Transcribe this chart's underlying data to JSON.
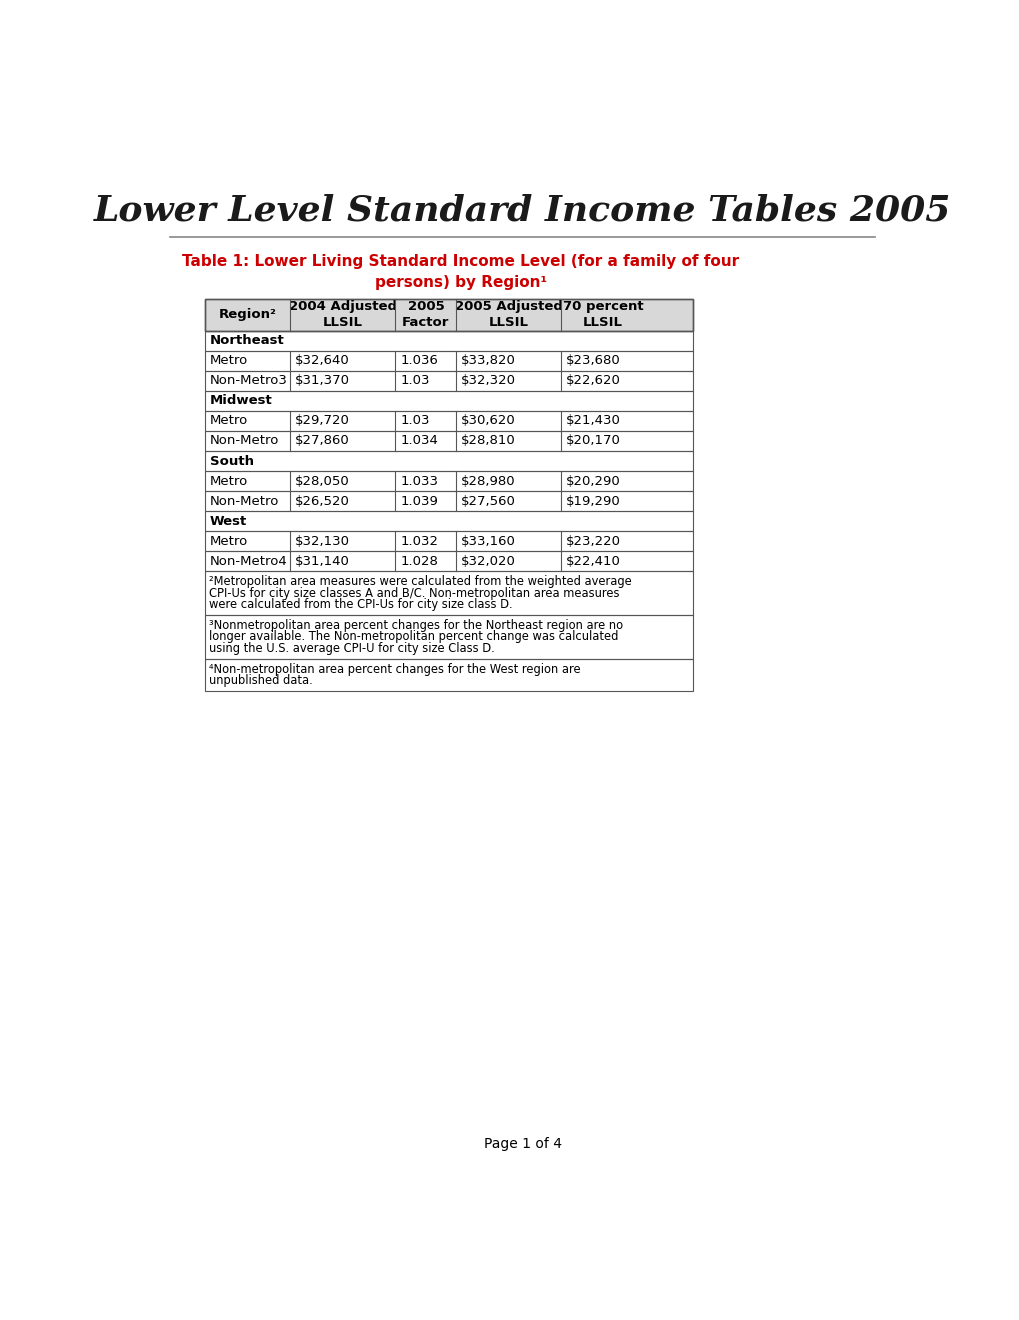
{
  "page_title": "Lower Level Standard Income Tables 2005",
  "table_title_line1": "Table 1: Lower Living Standard Income Level (for a family of four",
  "table_title_line2": "persons) by Region¹",
  "table_title_color": "#cc0000",
  "col_headers": [
    "Region²",
    "2004 Adjusted\nLLSIL",
    "2005\nFactor",
    "2005 Adjusted\nLLSIL",
    "70 percent\nLLSIL"
  ],
  "regions": [
    {
      "name": "Northeast",
      "is_header": true
    },
    {
      "name": "Metro",
      "col1": "$32,640",
      "col2": "1.036",
      "col3": "$33,820",
      "col4": "$23,680",
      "is_header": false
    },
    {
      "name": "Non-Metro3",
      "col1": "$31,370",
      "col2": "1.03",
      "col3": "$32,320",
      "col4": "$22,620",
      "is_header": false
    },
    {
      "name": "Midwest",
      "is_header": true
    },
    {
      "name": "Metro",
      "col1": "$29,720",
      "col2": "1.03",
      "col3": "$30,620",
      "col4": "$21,430",
      "is_header": false
    },
    {
      "name": "Non-Metro",
      "col1": "$27,860",
      "col2": "1.034",
      "col3": "$28,810",
      "col4": "$20,170",
      "is_header": false
    },
    {
      "name": "South",
      "is_header": true
    },
    {
      "name": "Metro",
      "col1": "$28,050",
      "col2": "1.033",
      "col3": "$28,980",
      "col4": "$20,290",
      "is_header": false
    },
    {
      "name": "Non-Metro",
      "col1": "$26,520",
      "col2": "1.039",
      "col3": "$27,560",
      "col4": "$19,290",
      "is_header": false
    },
    {
      "name": "West",
      "is_header": true
    },
    {
      "name": "Metro",
      "col1": "$32,130",
      "col2": "1.032",
      "col3": "$33,160",
      "col4": "$23,220",
      "is_header": false
    },
    {
      "name": "Non-Metro4",
      "col1": "$31,140",
      "col2": "1.028",
      "col3": "$32,020",
      "col4": "$22,410",
      "is_header": false
    }
  ],
  "footnote2": "²Metropolitan area measures were calculated from the weighted average\nCPI-Us for city size classes A and B/C. Non-metropolitan area measures\nwere calculated from the CPI-Us for city size class D.",
  "footnote3": "³Nonmetropolitan area percent changes for the Northeast region are no\nlonger available. The Non-metropolitan percent change was calculated\nusing the U.S. average CPI-U for city size Class D.",
  "footnote4": "⁴Non-metropolitan area percent changes for the West region are\nunpublished data.",
  "page_footer": "Page 1 of 4",
  "background_color": "#ffffff"
}
